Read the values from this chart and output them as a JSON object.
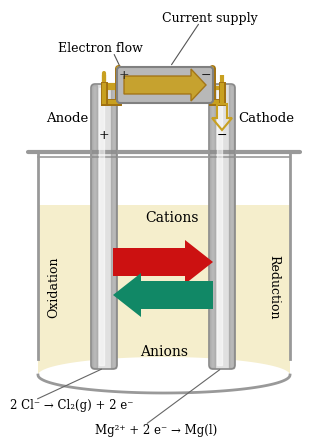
{
  "background_color": "#ffffff",
  "liquid_color": "#f5eecc",
  "beaker_edge_color": "#999999",
  "beaker_fill": "#ffffff",
  "electrode_light": "#e0e0e0",
  "electrode_dark": "#888888",
  "electrode_mid": "#c0c0c0",
  "wire_color": "#c8a020",
  "wire_dark": "#a07010",
  "supply_box_color": "#b8b8b8",
  "supply_outline": "#808080",
  "arrow_right_color": "#cc1111",
  "arrow_left_color": "#118866",
  "text_color": "#000000",
  "label_anode": "Anode",
  "label_cathode": "Cathode",
  "label_plus_anode": "+",
  "label_minus_cathode": "−",
  "label_plus_supply": "+",
  "label_minus_supply": "−",
  "label_electron_flow": "Electron flow",
  "label_current_supply": "Current supply",
  "label_oxidation": "Oxidation",
  "label_reduction": "Reduction",
  "label_cations": "Cations",
  "label_anions": "Anions",
  "eq1": "2 Cl⁻ → Cl₂(g) + 2 e⁻",
  "eq2": "Mg²⁺ + 2 e⁻ → Mg(l)"
}
